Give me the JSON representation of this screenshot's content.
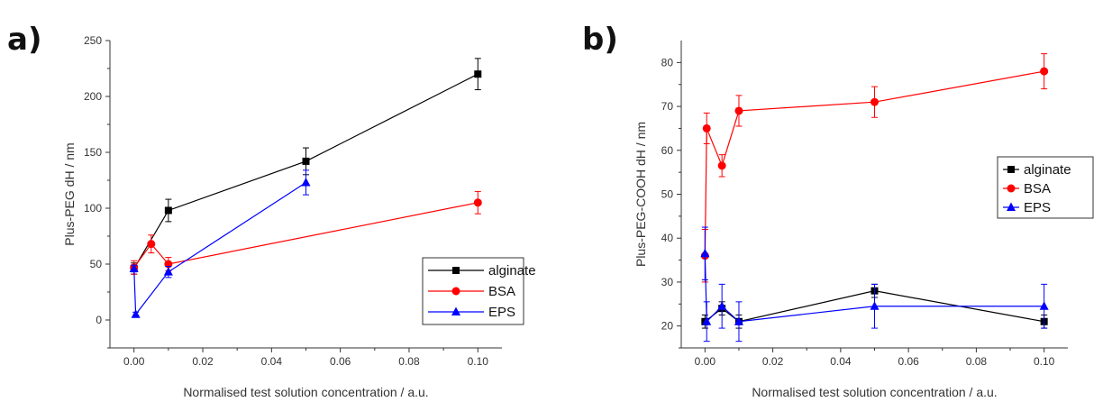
{
  "chart_data": [
    {
      "panel": "a)",
      "type": "line",
      "title": "",
      "xlabel": "Normalised test solution concentration / a.u.",
      "ylabel": "Plus-PEG dH / nm",
      "xlim": [
        -0.007,
        0.107
      ],
      "ylim": [
        -25,
        250
      ],
      "xticks": [
        0.0,
        0.02,
        0.04,
        0.06,
        0.08,
        0.1
      ],
      "xtick_labels": [
        "0.00",
        "0.02",
        "0.04",
        "0.06",
        "0.08",
        "0.10"
      ],
      "yticks": [
        0,
        50,
        100,
        150,
        200,
        250
      ],
      "ytick_labels": [
        "0",
        "50",
        "100",
        "150",
        "200",
        "250"
      ],
      "grid": false,
      "legend_position": "lower-right",
      "series": [
        {
          "name": "alginate",
          "color": "#000000",
          "marker": "square",
          "x": [
            0,
            0.01,
            0.05,
            0.1
          ],
          "y": [
            46,
            98,
            142,
            220
          ],
          "err": [
            5,
            10,
            12,
            14
          ]
        },
        {
          "name": "BSA",
          "color": "#ff0000",
          "marker": "circle",
          "x": [
            0,
            0.005,
            0.01,
            0.1
          ],
          "y": [
            47,
            68,
            50,
            105
          ],
          "err": [
            6,
            8,
            6,
            10
          ]
        },
        {
          "name": "EPS",
          "color": "#0000ff",
          "marker": "triangle",
          "x": [
            0,
            0.0005,
            0.01,
            0.05
          ],
          "y": [
            46,
            5,
            43,
            123
          ],
          "err": [
            3,
            2,
            5,
            11
          ]
        }
      ]
    },
    {
      "panel": "b)",
      "type": "line",
      "title": "",
      "xlabel": "Normalised test solution concentration / a.u.",
      "ylabel": "Plus-PEG-COOH dH / nm",
      "xlim": [
        -0.007,
        0.107
      ],
      "ylim": [
        15,
        85
      ],
      "xticks": [
        0.0,
        0.02,
        0.04,
        0.06,
        0.08,
        0.1
      ],
      "xtick_labels": [
        "0.00",
        "0.02",
        "0.04",
        "0.06",
        "0.08",
        "0.10"
      ],
      "yticks": [
        20,
        30,
        40,
        50,
        60,
        70,
        80
      ],
      "ytick_labels": [
        "20",
        "30",
        "40",
        "50",
        "60",
        "70",
        "80"
      ],
      "grid": false,
      "legend_position": "right",
      "series": [
        {
          "name": "alginate",
          "color": "#000000",
          "marker": "square",
          "x": [
            0,
            0.005,
            0.01,
            0.05,
            0.1
          ],
          "y": [
            21,
            24,
            21,
            28,
            21
          ],
          "err": [
            1.5,
            1.5,
            1.5,
            1.5,
            1.5
          ]
        },
        {
          "name": "BSA",
          "color": "#ff0000",
          "marker": "circle",
          "x": [
            0,
            0.0005,
            0.005,
            0.01,
            0.05,
            0.1
          ],
          "y": [
            36,
            65,
            56.5,
            69,
            71,
            78
          ],
          "err": [
            6,
            3.5,
            2.5,
            3.5,
            3.5,
            4
          ]
        },
        {
          "name": "EPS",
          "color": "#0000ff",
          "marker": "triangle",
          "x": [
            0,
            0.0005,
            0.005,
            0.01,
            0.05,
            0.1
          ],
          "y": [
            36.5,
            21,
            24.5,
            21,
            24.5,
            24.5
          ],
          "err": [
            6,
            4.5,
            5,
            4.5,
            5,
            5
          ]
        }
      ]
    }
  ]
}
